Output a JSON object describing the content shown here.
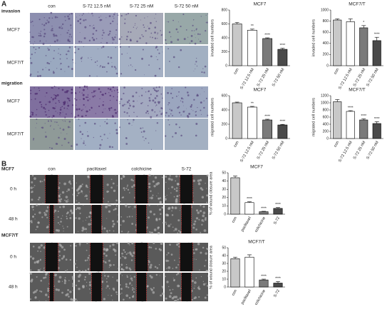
{
  "panel_labels": [
    "A",
    "B"
  ],
  "panel_a": {
    "col_headers": [
      "con",
      "S-72 12.5 nM",
      "S-72 25 nM",
      "S-72 50 nM"
    ],
    "row_labels": [
      "invasion",
      "MCF7",
      "MCF7/T",
      "migration",
      "MCF7",
      "MCF7/T"
    ]
  },
  "panel_b": {
    "col_headers": [
      "con",
      "paclitaxel",
      "colchicine",
      "S-72"
    ],
    "row_labels": [
      "MCF7",
      "0 h",
      "48 h",
      "MCF7/T",
      "0 h",
      "48 h"
    ]
  },
  "chart_data": [
    {
      "type": "bar",
      "title": "MCF7",
      "y_label": "invaded cell numbers",
      "categories": [
        "con",
        "S-72 12.5 nM",
        "S-72 25 nM",
        "S-72 50 nM"
      ],
      "values": [
        600,
        510,
        390,
        235
      ],
      "errors": [
        20,
        15,
        10,
        15
      ],
      "sig_labels": [
        null,
        "**",
        "****",
        "****"
      ],
      "colors": [
        "#c8c8c8",
        "#ffffff",
        "#7a7a7a",
        "#4a4a4a"
      ],
      "ylim": [
        0,
        800
      ],
      "yticks": [
        0,
        200,
        400,
        600,
        800
      ]
    },
    {
      "type": "bar",
      "title": "MCF7/T",
      "y_label": "invaded cell numbers",
      "categories": [
        "con",
        "S-72 12.5 nM",
        "S-72 25 nM",
        "S-72 50 nM"
      ],
      "values": [
        820,
        790,
        680,
        450
      ],
      "errors": [
        20,
        50,
        40,
        60
      ],
      "sig_labels": [
        null,
        null,
        "*",
        "****"
      ],
      "colors": [
        "#c8c8c8",
        "#ffffff",
        "#7a7a7a",
        "#4a4a4a"
      ],
      "ylim": [
        0,
        1000
      ],
      "yticks": [
        0,
        200,
        400,
        600,
        800,
        1000
      ]
    },
    {
      "type": "bar",
      "title": "MCF7",
      "y_label": "migrated cell numbers",
      "categories": [
        "con",
        "S-72 12.5 nM",
        "S-72 25 nM",
        "S-72 50 nM"
      ],
      "values": [
        500,
        440,
        260,
        190
      ],
      "errors": [
        10,
        10,
        10,
        8
      ],
      "sig_labels": [
        null,
        "**",
        "****",
        "****"
      ],
      "colors": [
        "#c8c8c8",
        "#ffffff",
        "#7a7a7a",
        "#4a4a4a"
      ],
      "ylim": [
        0,
        600
      ],
      "yticks": [
        0,
        200,
        400,
        600
      ]
    },
    {
      "type": "bar",
      "title": "MCF7/T",
      "y_label": "migrated cell numbers",
      "categories": [
        "con",
        "S-72 12.5 nM",
        "S-72 25 nM",
        "S-72 50 nM"
      ],
      "values": [
        1030,
        760,
        520,
        420
      ],
      "errors": [
        60,
        20,
        30,
        50
      ],
      "sig_labels": [
        null,
        "****",
        "****",
        "****"
      ],
      "colors": [
        "#c8c8c8",
        "#ffffff",
        "#7a7a7a",
        "#4a4a4a"
      ],
      "ylim": [
        0,
        1200
      ],
      "yticks": [
        0,
        200,
        400,
        600,
        800,
        1000,
        1200
      ]
    },
    {
      "type": "bar",
      "title": "MCF7",
      "y_label": "% of wound closure area",
      "categories": [
        "con",
        "paclitaxel",
        "colchicine",
        "S-72"
      ],
      "values": [
        44,
        14,
        3,
        7
      ],
      "errors": [
        2,
        1,
        0.5,
        1
      ],
      "sig_labels": [
        null,
        "****",
        "****",
        "****"
      ],
      "colors": [
        "#c8c8c8",
        "#ffffff",
        "#7a7a7a",
        "#4a4a4a"
      ],
      "ylim": [
        0,
        50
      ],
      "yticks": [
        0,
        10,
        20,
        30,
        40,
        50
      ]
    },
    {
      "type": "bar",
      "title": "MCF7/T",
      "y_label": "% of wound closure area",
      "categories": [
        "con",
        "paclitaxel",
        "colchicine",
        "S-72"
      ],
      "values": [
        36,
        38,
        9,
        5
      ],
      "errors": [
        2,
        3,
        1,
        2
      ],
      "sig_labels": [
        null,
        null,
        "****",
        "****"
      ],
      "colors": [
        "#c8c8c8",
        "#ffffff",
        "#7a7a7a",
        "#4a4a4a"
      ],
      "ylim": [
        0,
        50
      ],
      "yticks": [
        0,
        10,
        20,
        30,
        40,
        50
      ]
    }
  ]
}
